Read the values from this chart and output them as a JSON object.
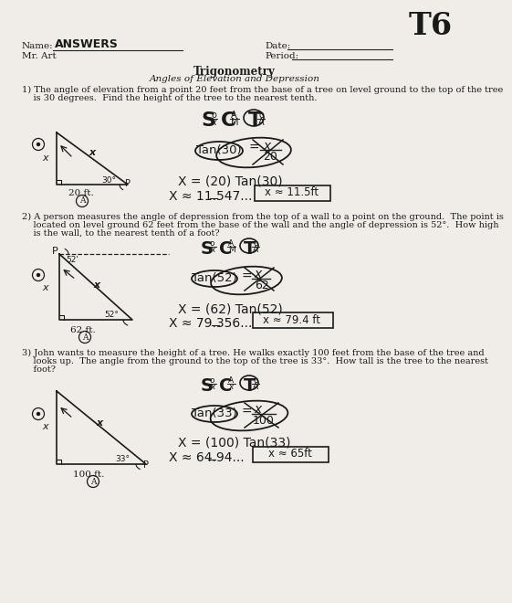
{
  "bg": "#f0ede8",
  "fg": "#1a1a1a",
  "title": "T6",
  "name_label": "Name:",
  "name_val": "Answers",
  "mr_art": "Mr. Art",
  "date_label": "Date:",
  "period_label": "Period:",
  "center_title": "Trigonometry",
  "center_sub": "Angles of Elevation and Depression",
  "q1_line1": "1) The angle of elevation from a point 20 feet from the base of a tree on level ground to the top of the tree",
  "q1_line2": "    is 30 degrees.  Find the height of the tree to the nearest tenth.",
  "q1_eq2": "X = (20) Tan(30)",
  "q1_eq3": "X ≈ 11.547...",
  "q1_box": "x ≈ 11.5ft",
  "q2_line1": "2) A person measures the angle of depression from the top of a wall to a point on the ground.  The point is",
  "q2_line2": "    located on level ground 62 feet from the base of the wall and the angle of depression is 52°.  How high",
  "q2_line3": "    is the wall, to the nearest tenth of a foot?",
  "q2_eq2": "X = (62) Tan(52)",
  "q2_eq3": "X ≈ 79.356...",
  "q2_box": "x ≈ 79.4 ft",
  "q3_line1": "3) John wants to measure the height of a tree. He walks exactly 100 feet from the base of the tree and",
  "q3_line2": "    looks up.  The angle from the ground to the top of the tree is 33°.  How tall is the tree to the nearest",
  "q3_line3": "    foot?",
  "q3_eq2": "X = (100) Tan(33)",
  "q3_eq3": "X ≈ 64.94...",
  "q3_box": "x ≈ 65ft"
}
